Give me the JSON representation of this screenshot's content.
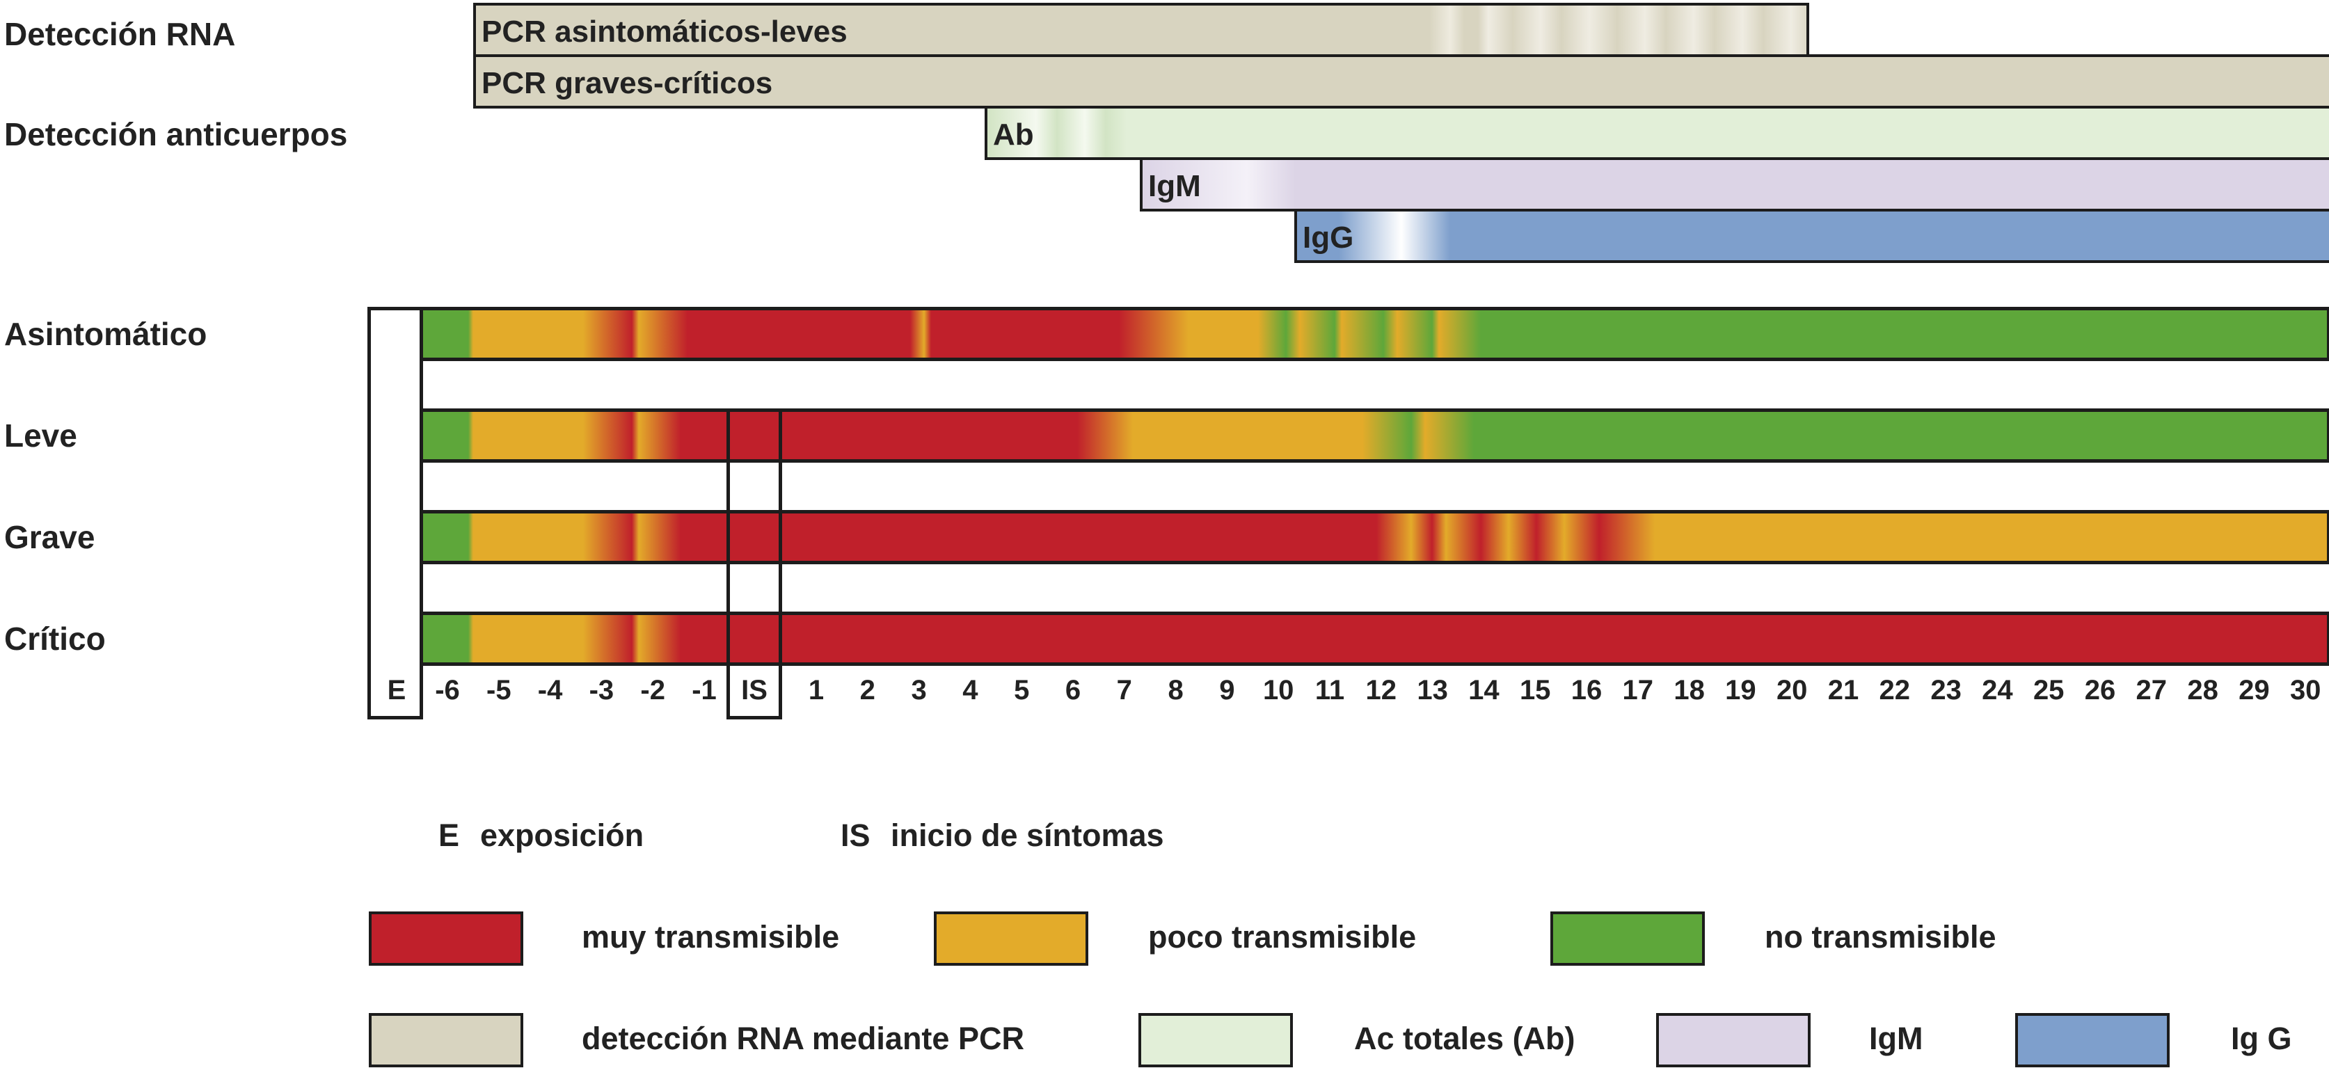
{
  "labels": {
    "rna": "Detección RNA",
    "ab": "Detección anticuerpos",
    "asintomatico": "Asintomático",
    "leve": "Leve",
    "grave": "Grave",
    "critico": "Crítico"
  },
  "bars": {
    "pcr_asint": "PCR asintomáticos-leves",
    "pcr_graves": "PCR graves-críticos",
    "ab": "Ab",
    "igm": "IgM",
    "igg": "IgG"
  },
  "axis": {
    "exposure_marker": "E",
    "onset_marker": "IS",
    "days": [
      "-6",
      "-5",
      "-4",
      "-3",
      "-2",
      "-1",
      "1",
      "2",
      "3",
      "4",
      "5",
      "6",
      "7",
      "8",
      "9",
      "10",
      "11",
      "12",
      "13",
      "14",
      "15",
      "16",
      "17",
      "18",
      "19",
      "20",
      "21",
      "22",
      "23",
      "24",
      "25",
      "26",
      "27",
      "28",
      "29",
      "30"
    ]
  },
  "legend": {
    "e_abbr": "E",
    "e_text": "exposición",
    "is_abbr": "IS",
    "is_text": "inicio de síntomas",
    "muy": "muy transmisible",
    "poco": "poco transmisible",
    "no": "no transmisible",
    "pcr": "detección RNA mediante PCR",
    "ac": "Ac totales (Ab)",
    "igm": "IgM",
    "igg": "Ig G"
  },
  "colors": {
    "muy_transmisible": "#c0202b",
    "poco_transmisible": "#e3ab2a",
    "no_transmisible": "#5ea73a",
    "pcr": "#d8d4c0",
    "ab": "#e2efd8",
    "igm": "#dcd4e6",
    "igg": "#7e9fcc"
  }
}
